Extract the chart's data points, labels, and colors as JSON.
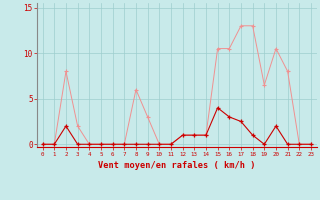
{
  "x": [
    0,
    1,
    2,
    3,
    4,
    5,
    6,
    7,
    8,
    9,
    10,
    11,
    12,
    13,
    14,
    15,
    16,
    17,
    18,
    19,
    20,
    21,
    22,
    23
  ],
  "rafales": [
    0,
    0,
    8,
    2,
    0,
    0,
    0,
    0,
    6,
    3,
    0,
    0,
    1,
    1,
    1,
    10.5,
    10.5,
    13,
    13,
    6.5,
    10.5,
    8,
    0,
    0
  ],
  "moyen": [
    0,
    0,
    2,
    0,
    0,
    0,
    0,
    0,
    0,
    0,
    0,
    0,
    1,
    1,
    1,
    4,
    3,
    2.5,
    1,
    0,
    2,
    0,
    0,
    0
  ],
  "bg_color": "#c8eaea",
  "grid_color": "#9ecece",
  "line_color_rafales": "#f09090",
  "line_color_moyen": "#cc0000",
  "ylabel_vals": [
    0,
    5,
    10,
    15
  ],
  "ylabel_labels": [
    "0",
    "5",
    "10",
    "15"
  ],
  "xlabel": "Vent moyen/en rafales ( km/h )",
  "xlabel_color": "#cc0000",
  "tick_color": "#cc0000",
  "spine_color": "#888888",
  "ylim": [
    -0.3,
    15.5
  ],
  "xlim": [
    -0.5,
    23.5
  ]
}
